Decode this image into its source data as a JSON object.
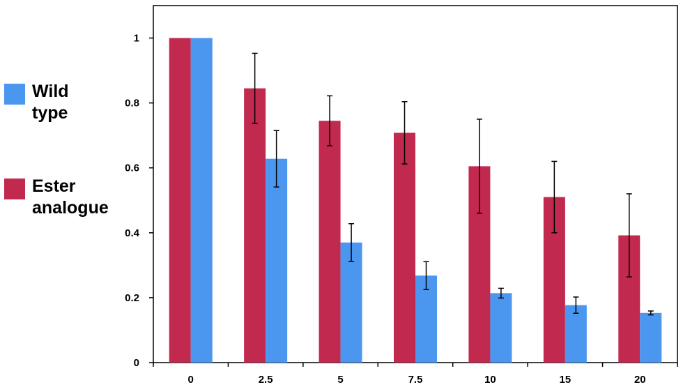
{
  "chart_data": {
    "type": "bar",
    "title": "",
    "xlabel": "",
    "ylabel": "",
    "categories": [
      "0",
      "2.5",
      "5",
      "7.5",
      "10",
      "15",
      "20"
    ],
    "ylim": [
      0,
      1.1
    ],
    "y_ticks": [
      "0",
      "0.2",
      "0.4",
      "0.6",
      "0.8",
      "1"
    ],
    "legend_position": "left",
    "grid": false,
    "series": [
      {
        "name": "Ester analogue",
        "color": "#c1294e",
        "values": [
          1.0,
          0.845,
          0.745,
          0.708,
          0.605,
          0.51,
          0.392
        ],
        "error": [
          0,
          0.108,
          0.077,
          0.096,
          0.145,
          0.11,
          0.128
        ]
      },
      {
        "name": "Wild type",
        "color": "#4b97f0",
        "values": [
          1.0,
          0.628,
          0.37,
          0.268,
          0.214,
          0.177,
          0.153
        ],
        "error": [
          0,
          0.087,
          0.058,
          0.043,
          0.015,
          0.025,
          0.006
        ]
      }
    ]
  },
  "legend": {
    "wild_type": {
      "line1": "Wild",
      "line2": "type",
      "color": "#4b97f0"
    },
    "ester": {
      "line1": "Ester",
      "line2": "analogue",
      "color": "#c1294e"
    }
  }
}
